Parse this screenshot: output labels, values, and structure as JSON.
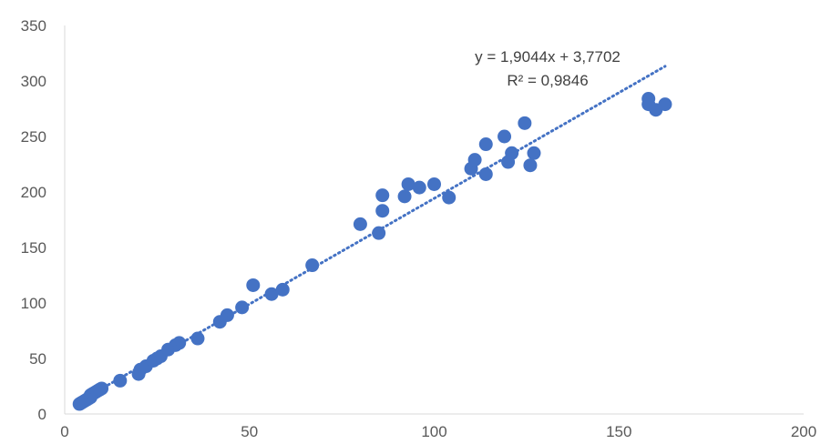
{
  "chart_data": {
    "type": "scatter",
    "title": "",
    "xlabel": "",
    "ylabel": "",
    "xlim": [
      0,
      200
    ],
    "ylim": [
      0,
      350
    ],
    "x_ticks": [
      "0",
      "50",
      "100",
      "150",
      "200"
    ],
    "y_ticks": [
      "0",
      "50",
      "100",
      "150",
      "200",
      "250",
      "300",
      "350"
    ],
    "grid": false,
    "legend": "none",
    "marker_color": "#4472c4",
    "trendline": {
      "type": "linear",
      "slope": 1.9044,
      "intercept": 3.7702,
      "x_range": [
        3.5,
        162.5
      ],
      "color": "#4472c4",
      "style": "dotted",
      "equation": "y = 1,9044x + 3,7702",
      "r_squared": "R² = 0,9846"
    },
    "series": [
      {
        "x": [
          4,
          4.5,
          5,
          5.5,
          6,
          6.5,
          7,
          7,
          7.5,
          8,
          8.5,
          9,
          9.5,
          10,
          15,
          20,
          20.5,
          22,
          24,
          25,
          26,
          28,
          30,
          31,
          36,
          42,
          44,
          48,
          51,
          56,
          59,
          67,
          80,
          85,
          86,
          86,
          92,
          93,
          96,
          100,
          104,
          110,
          111,
          114,
          114,
          119,
          120,
          121,
          124.5,
          126,
          127,
          158,
          158,
          160,
          162.5
        ],
        "y": [
          9,
          10,
          11,
          12,
          13,
          14,
          15,
          17,
          18,
          19,
          20,
          21,
          22,
          23,
          30,
          36,
          40,
          43,
          48,
          50,
          52,
          58,
          62,
          64,
          68,
          83,
          89,
          96,
          116,
          108,
          112,
          134,
          171,
          163,
          183,
          197,
          196,
          207,
          204,
          207,
          195,
          221,
          229,
          216,
          243,
          250,
          227,
          235,
          262,
          224,
          235,
          284,
          279,
          274,
          279
        ]
      }
    ]
  }
}
